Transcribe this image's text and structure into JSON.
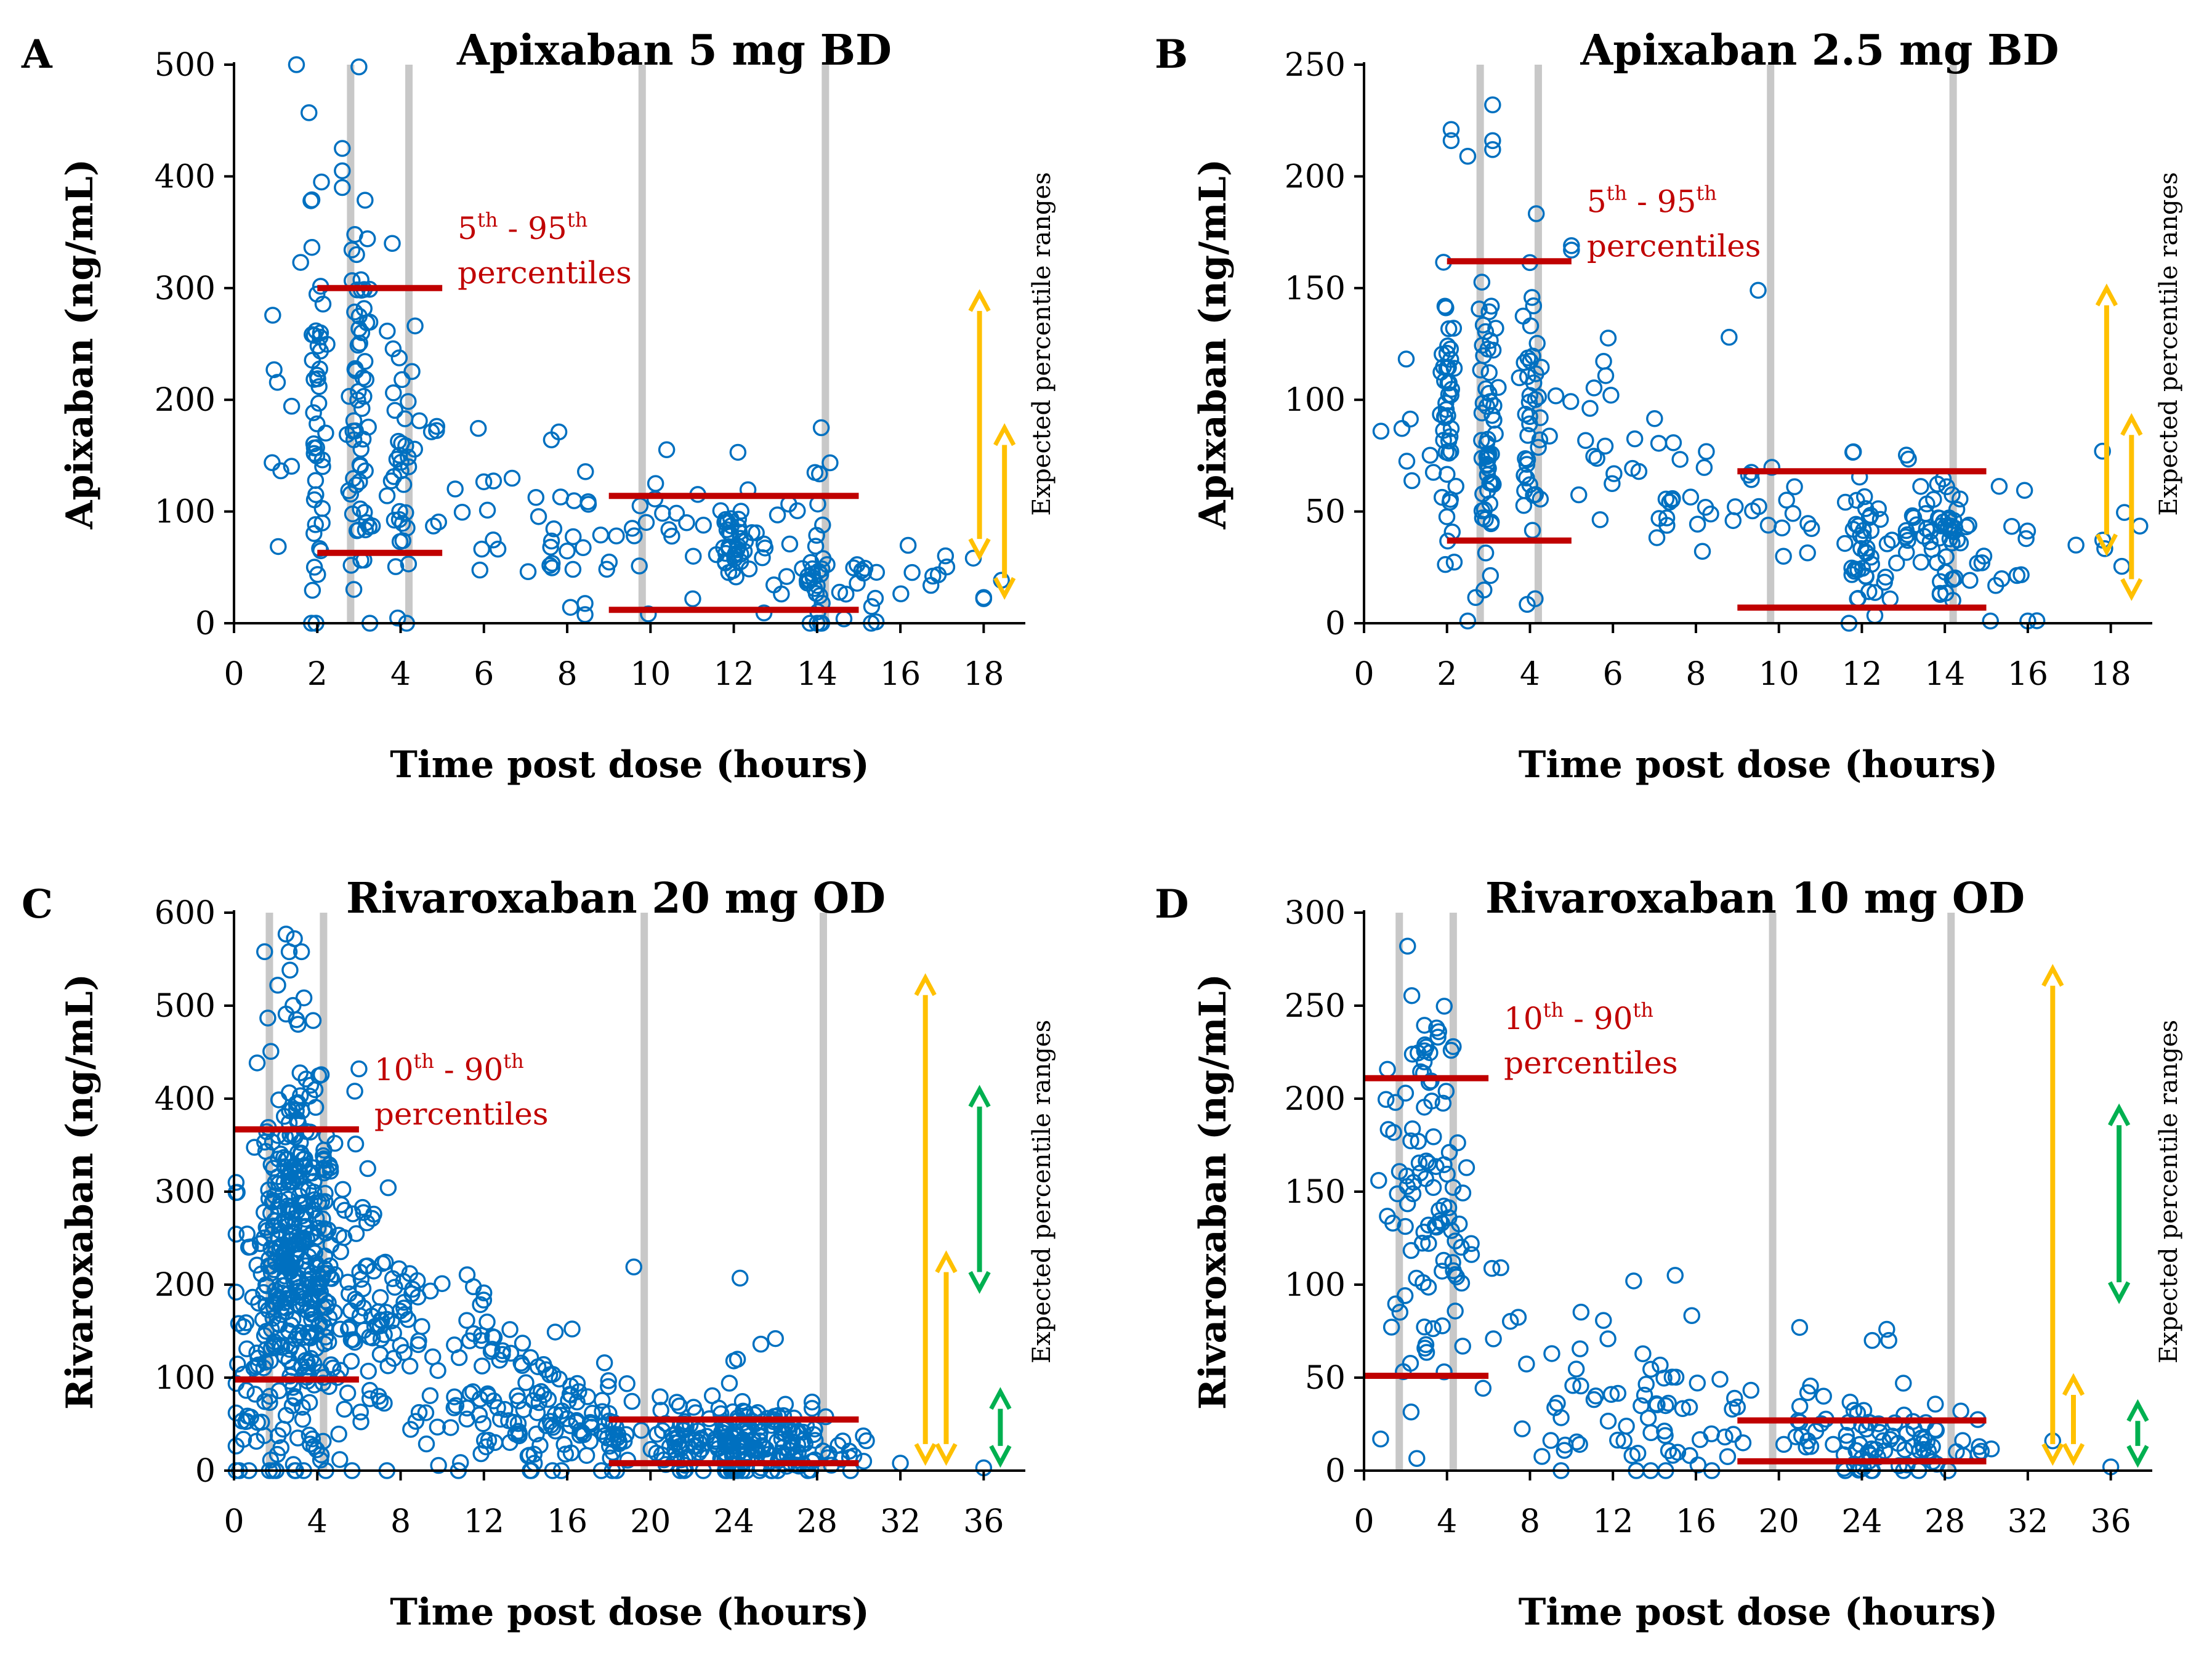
{
  "chart_data": [
    {
      "type": "scatter",
      "panel": "A",
      "title": "Apixaban 5 mg BD",
      "xlabel": "Time post dose (hours)",
      "ylabel": "Apixaban (ng/mL)",
      "xlim": [
        0,
        19
      ],
      "ylim": [
        0,
        500
      ],
      "xticks": [
        0,
        2,
        4,
        6,
        8,
        10,
        12,
        14,
        16,
        18
      ],
      "yticks": [
        0,
        100,
        200,
        300,
        400,
        500
      ],
      "vlines": [
        2.8,
        4.2,
        9.8,
        14.2
      ],
      "percentile_label": {
        "lo": "5",
        "hi": "95",
        "suffix": "th",
        "text": "percentiles"
      },
      "percentile_lines": [
        {
          "x0": 2,
          "x1": 5,
          "y": 300
        },
        {
          "x0": 2,
          "x1": 5,
          "y": 63
        },
        {
          "x0": 9,
          "x1": 15,
          "y": 114
        },
        {
          "x0": 9,
          "x1": 15,
          "y": 12
        }
      ],
      "expected_ranges": [
        {
          "color": "#ffc000",
          "x": 17.9,
          "y0": 60,
          "y1": 295
        },
        {
          "color": "#ffc000",
          "x": 18.5,
          "y0": 25,
          "y1": 175
        }
      ],
      "side_label": "Expected percentile ranges",
      "seed": 11,
      "clusters": [
        {
          "x": 1.2,
          "sx": 0.25,
          "mean": 190,
          "sd": 55,
          "n": 8
        },
        {
          "x": 2,
          "sx": 0.1,
          "mean": 175,
          "sd": 90,
          "n": 45
        },
        {
          "x": 3,
          "sx": 0.12,
          "mean": 170,
          "sd": 85,
          "n": 60
        },
        {
          "x": 4,
          "sx": 0.12,
          "mean": 150,
          "sd": 65,
          "n": 35
        },
        {
          "x": 5.5,
          "sx": 0.8,
          "mean": 120,
          "sd": 50,
          "n": 18
        },
        {
          "x": 8,
          "sx": 0.6,
          "mean": 80,
          "sd": 40,
          "n": 25
        },
        {
          "x": 10,
          "sx": 0.6,
          "mean": 80,
          "sd": 35,
          "n": 20
        },
        {
          "x": 12,
          "sx": 0.2,
          "mean": 70,
          "sd": 30,
          "n": 35
        },
        {
          "x": 13,
          "sx": 0.4,
          "mean": 60,
          "sd": 25,
          "n": 15
        },
        {
          "x": 14,
          "sx": 0.15,
          "mean": 40,
          "sd": 30,
          "n": 30
        },
        {
          "x": 15.5,
          "sx": 0.8,
          "mean": 35,
          "sd": 25,
          "n": 20
        },
        {
          "x": 17.5,
          "sx": 0.6,
          "mean": 30,
          "sd": 15,
          "n": 4
        }
      ],
      "extra_points": [
        [
          1.5,
          500
        ],
        [
          3,
          498
        ],
        [
          1.8,
          457
        ],
        [
          2.6,
          425
        ],
        [
          2.6,
          405
        ],
        [
          2.6,
          390
        ],
        [
          2.1,
          395
        ],
        [
          3.8,
          340
        ],
        [
          2.9,
          348
        ],
        [
          1.6,
          323
        ],
        [
          15.3,
          0
        ],
        [
          14.1,
          175
        ],
        [
          12.1,
          153
        ],
        [
          18,
          22
        ],
        [
          18,
          23
        ]
      ]
    },
    {
      "type": "scatter",
      "panel": "B",
      "title": "Apixaban 2.5 mg BD",
      "xlabel": "Time post dose (hours)",
      "ylabel": "Apixaban (ng/mL)",
      "xlim": [
        0,
        19
      ],
      "ylim": [
        0,
        250
      ],
      "xticks": [
        0,
        2,
        4,
        6,
        8,
        10,
        12,
        14,
        16,
        18
      ],
      "yticks": [
        0,
        50,
        100,
        150,
        200,
        250
      ],
      "vlines": [
        2.8,
        4.2,
        9.8,
        14.2
      ],
      "percentile_label": {
        "lo": "5",
        "hi": "95",
        "suffix": "th",
        "text": "percentiles"
      },
      "percentile_lines": [
        {
          "x0": 2,
          "x1": 5,
          "y": 162
        },
        {
          "x0": 2,
          "x1": 5,
          "y": 37
        },
        {
          "x0": 9,
          "x1": 15,
          "y": 68
        },
        {
          "x0": 9,
          "x1": 15,
          "y": 7
        }
      ],
      "expected_ranges": [
        {
          "color": "#ffc000",
          "x": 17.9,
          "y0": 32,
          "y1": 150
        },
        {
          "color": "#ffc000",
          "x": 18.5,
          "y0": 12,
          "y1": 92
        }
      ],
      "side_label": "Expected percentile ranges",
      "seed": 23,
      "clusters": [
        {
          "x": 0.9,
          "sx": 0.35,
          "mean": 85,
          "sd": 30,
          "n": 8
        },
        {
          "x": 2,
          "sx": 0.1,
          "mean": 90,
          "sd": 35,
          "n": 45
        },
        {
          "x": 3,
          "sx": 0.12,
          "mean": 90,
          "sd": 35,
          "n": 55
        },
        {
          "x": 4,
          "sx": 0.12,
          "mean": 85,
          "sd": 30,
          "n": 40
        },
        {
          "x": 5.5,
          "sx": 0.6,
          "mean": 80,
          "sd": 22,
          "n": 20
        },
        {
          "x": 7.5,
          "sx": 0.6,
          "mean": 50,
          "sd": 20,
          "n": 22
        },
        {
          "x": 10,
          "sx": 0.6,
          "mean": 50,
          "sd": 15,
          "n": 15
        },
        {
          "x": 12,
          "sx": 0.2,
          "mean": 40,
          "sd": 18,
          "n": 40
        },
        {
          "x": 13,
          "sx": 0.4,
          "mean": 40,
          "sd": 15,
          "n": 20
        },
        {
          "x": 14,
          "sx": 0.2,
          "mean": 35,
          "sd": 18,
          "n": 35
        },
        {
          "x": 15.5,
          "sx": 0.7,
          "mean": 28,
          "sd": 16,
          "n": 22
        },
        {
          "x": 17.5,
          "sx": 0.6,
          "mean": 30,
          "sd": 20,
          "n": 5
        }
      ],
      "extra_points": [
        [
          3.1,
          232
        ],
        [
          2.1,
          221
        ],
        [
          2.1,
          216
        ],
        [
          3.1,
          216
        ],
        [
          3.1,
          212
        ],
        [
          2.5,
          209
        ],
        [
          5,
          169
        ],
        [
          5,
          167
        ],
        [
          9.5,
          149
        ],
        [
          8.8,
          128
        ],
        [
          17.8,
          77
        ],
        [
          2.5,
          1
        ],
        [
          15.1,
          1
        ],
        [
          16,
          1
        ]
      ]
    },
    {
      "type": "scatter",
      "panel": "C",
      "title": "Rivaroxaban 20 mg OD",
      "xlabel": "Time post dose (hours)",
      "ylabel": "Rivaroxaban (ng/mL)",
      "xlim": [
        0,
        38
      ],
      "ylim": [
        0,
        600
      ],
      "xticks": [
        0,
        4,
        8,
        12,
        16,
        20,
        24,
        28,
        32,
        36
      ],
      "yticks": [
        0,
        100,
        200,
        300,
        400,
        500,
        600
      ],
      "vlines": [
        1.7,
        4.3,
        19.7,
        28.3
      ],
      "percentile_label": {
        "lo": "10",
        "hi": "90",
        "suffix": "th",
        "text": "percentiles"
      },
      "percentile_lines": [
        {
          "x0": 0,
          "x1": 6,
          "y": 367
        },
        {
          "x0": 0,
          "x1": 6,
          "y": 98
        },
        {
          "x0": 18,
          "x1": 30,
          "y": 55
        },
        {
          "x0": 18,
          "x1": 30,
          "y": 8
        }
      ],
      "expected_ranges": [
        {
          "color": "#ffc000",
          "x": 33.2,
          "y0": 10,
          "y1": 530
        },
        {
          "color": "#00b050",
          "x": 35.8,
          "y0": 195,
          "y1": 410
        },
        {
          "color": "#ffc000",
          "x": 34.2,
          "y0": 10,
          "y1": 232
        },
        {
          "color": "#00b050",
          "x": 36.8,
          "y0": 8,
          "y1": 85
        }
      ],
      "side_label": "Expected percentile ranges",
      "seed": 37,
      "clusters": [
        {
          "x": 0.6,
          "sx": 0.4,
          "mean": 130,
          "sd": 100,
          "n": 35
        },
        {
          "x": 2,
          "sx": 0.45,
          "mean": 230,
          "sd": 110,
          "n": 120
        },
        {
          "x": 3,
          "sx": 0.45,
          "mean": 240,
          "sd": 110,
          "n": 150
        },
        {
          "x": 4,
          "sx": 0.45,
          "mean": 220,
          "sd": 100,
          "n": 110
        },
        {
          "x": 5.5,
          "sx": 0.7,
          "mean": 180,
          "sd": 80,
          "n": 50
        },
        {
          "x": 8,
          "sx": 1.1,
          "mean": 140,
          "sd": 65,
          "n": 60
        },
        {
          "x": 12,
          "sx": 1.2,
          "mean": 90,
          "sd": 50,
          "n": 60
        },
        {
          "x": 15,
          "sx": 1.2,
          "mean": 70,
          "sd": 45,
          "n": 55
        },
        {
          "x": 18,
          "sx": 0.8,
          "mean": 50,
          "sd": 30,
          "n": 40
        },
        {
          "x": 21,
          "sx": 0.8,
          "mean": 35,
          "sd": 20,
          "n": 50
        },
        {
          "x": 24,
          "sx": 0.7,
          "mean": 35,
          "sd": 25,
          "n": 90
        },
        {
          "x": 26.5,
          "sx": 1.0,
          "mean": 30,
          "sd": 20,
          "n": 70
        },
        {
          "x": 29.5,
          "sx": 0.6,
          "mean": 20,
          "sd": 12,
          "n": 12
        }
      ],
      "extra_points": [
        [
          2.5,
          577
        ],
        [
          2.9,
          572
        ],
        [
          2.1,
          522
        ],
        [
          2.5,
          491
        ],
        [
          3.8,
          484
        ],
        [
          6,
          432
        ],
        [
          5.8,
          408
        ],
        [
          19.2,
          219
        ],
        [
          24.3,
          207
        ],
        [
          25.3,
          136
        ],
        [
          26,
          142
        ],
        [
          24,
          118
        ],
        [
          32,
          8
        ],
        [
          36,
          3
        ]
      ]
    },
    {
      "type": "scatter",
      "panel": "D",
      "title": "Rivaroxaban 10 mg OD",
      "xlabel": "Time post dose (hours)",
      "ylabel": "Rivaroxaban (ng/mL)",
      "xlim": [
        0,
        38
      ],
      "ylim": [
        0,
        300
      ],
      "xticks": [
        0,
        4,
        8,
        12,
        16,
        20,
        24,
        28,
        32,
        36
      ],
      "yticks": [
        0,
        50,
        100,
        150,
        200,
        250,
        300
      ],
      "vlines": [
        1.7,
        4.3,
        19.7,
        28.3
      ],
      "percentile_label": {
        "lo": "10",
        "hi": "90",
        "suffix": "th",
        "text": "percentiles"
      },
      "percentile_lines": [
        {
          "x0": 0,
          "x1": 6,
          "y": 211
        },
        {
          "x0": 0,
          "x1": 6,
          "y": 51
        },
        {
          "x0": 18,
          "x1": 30,
          "y": 27
        },
        {
          "x0": 18,
          "x1": 30,
          "y": 5
        }
      ],
      "expected_ranges": [
        {
          "color": "#ffc000",
          "x": 33.2,
          "y0": 5,
          "y1": 270
        },
        {
          "color": "#ffc000",
          "x": 34.2,
          "y0": 5,
          "y1": 50
        },
        {
          "color": "#00b050",
          "x": 36.4,
          "y0": 92,
          "y1": 195
        },
        {
          "color": "#00b050",
          "x": 37.3,
          "y0": 4,
          "y1": 36
        }
      ],
      "side_label": "Expected percentile ranges",
      "seed": 53,
      "clusters": [
        {
          "x": 1.8,
          "sx": 0.5,
          "mean": 140,
          "sd": 50,
          "n": 30
        },
        {
          "x": 3,
          "sx": 0.5,
          "mean": 150,
          "sd": 50,
          "n": 40
        },
        {
          "x": 4.2,
          "sx": 0.5,
          "mean": 130,
          "sd": 45,
          "n": 25
        },
        {
          "x": 6,
          "sx": 0.8,
          "mean": 100,
          "sd": 30,
          "n": 10
        },
        {
          "x": 10,
          "sx": 1.3,
          "mean": 55,
          "sd": 22,
          "n": 25
        },
        {
          "x": 14,
          "sx": 1.2,
          "mean": 30,
          "sd": 22,
          "n": 30
        },
        {
          "x": 17,
          "sx": 1.0,
          "mean": 25,
          "sd": 16,
          "n": 15
        },
        {
          "x": 21,
          "sx": 0.8,
          "mean": 20,
          "sd": 12,
          "n": 18
        },
        {
          "x": 24,
          "sx": 0.6,
          "mean": 15,
          "sd": 10,
          "n": 30
        },
        {
          "x": 26.5,
          "sx": 1.0,
          "mean": 14,
          "sd": 10,
          "n": 35
        },
        {
          "x": 29.5,
          "sx": 0.5,
          "mean": 12,
          "sd": 8,
          "n": 6
        }
      ],
      "extra_points": [
        [
          2.1,
          282
        ],
        [
          3.5,
          238
        ],
        [
          3.6,
          236
        ],
        [
          4.3,
          228
        ],
        [
          4.2,
          226
        ],
        [
          15,
          105
        ],
        [
          13,
          102
        ],
        [
          21,
          77
        ],
        [
          25.2,
          76
        ],
        [
          25.3,
          70
        ],
        [
          24.5,
          70
        ],
        [
          26,
          47
        ],
        [
          33.2,
          16
        ],
        [
          36,
          2
        ],
        [
          9.5,
          0
        ],
        [
          0.8,
          17
        ]
      ]
    }
  ]
}
